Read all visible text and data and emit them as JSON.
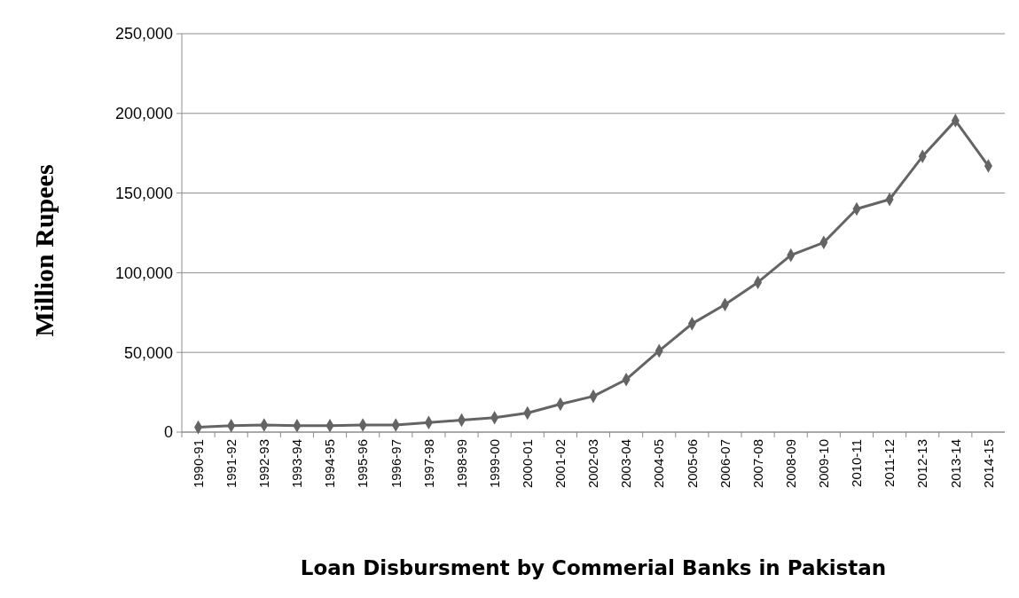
{
  "chart_data": {
    "type": "line",
    "xlabel": "Loan Disbursment by Commerial Banks in Pakistan",
    "ylabel": "Million Rupees",
    "categories": [
      "1990-91",
      "1991-92",
      "1992-93",
      "1993-94",
      "1994-95",
      "1995-96",
      "1996-97",
      "1997-98",
      "1998-99",
      "1999-00",
      "2000-01",
      "2001-02",
      "2002-03",
      "2003-04",
      "2004-05",
      "2005-06",
      "2006-07",
      "2007-08",
      "2008-09",
      "2009-10",
      "2010-11",
      "2011-12",
      "2012-13",
      "2013-14",
      "2014-15"
    ],
    "series": [
      {
        "color": "#646464",
        "values": [
          3000,
          4000,
          4500,
          4000,
          4000,
          4500,
          4500,
          6000,
          7500,
          9000,
          12000,
          17500,
          22500,
          33000,
          51000,
          68000,
          80000,
          94000,
          111000,
          119000,
          140000,
          146000,
          173000,
          195500,
          167000
        ]
      }
    ],
    "ylim": [
      0,
      250000
    ],
    "yticks": [
      0,
      {
        "value": 50000,
        "label": "50,000"
      },
      {
        "value": 100000,
        "label": "100,000"
      },
      {
        "value": 150000,
        "label": "150,000"
      },
      {
        "value": 200000,
        "label": "200,000"
      },
      {
        "value": 250000,
        "label": "250,000"
      }
    ],
    "grid": "y",
    "marker": "diamond",
    "line_style": "solid"
  }
}
